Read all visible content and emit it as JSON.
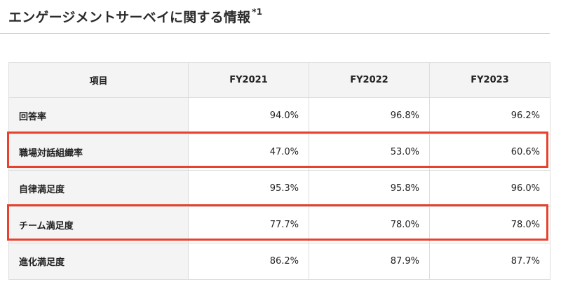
{
  "title": {
    "text": "エンゲージメントサーベイに関する情報",
    "footnote": "*1"
  },
  "table": {
    "headers": [
      "項目",
      "FY2021",
      "FY2022",
      "FY2023"
    ],
    "rows": [
      {
        "label": "回答率",
        "values": [
          "94.0%",
          "96.8%",
          "96.2%"
        ],
        "highlighted": false
      },
      {
        "label": "職場対話組織率",
        "values": [
          "47.0%",
          "53.0%",
          "60.6%"
        ],
        "highlighted": true
      },
      {
        "label": "自律満足度",
        "values": [
          "95.3%",
          "95.8%",
          "96.0%"
        ],
        "highlighted": false
      },
      {
        "label": "チーム満足度",
        "values": [
          "77.7%",
          "78.0%",
          "78.0%"
        ],
        "highlighted": true
      },
      {
        "label": "進化満足度",
        "values": [
          "86.2%",
          "87.9%",
          "87.7%"
        ],
        "highlighted": false
      }
    ]
  },
  "colors": {
    "highlight_border": "#e8422f",
    "title_underline": "#8fc4ea",
    "header_background": "#f4f4f4"
  }
}
